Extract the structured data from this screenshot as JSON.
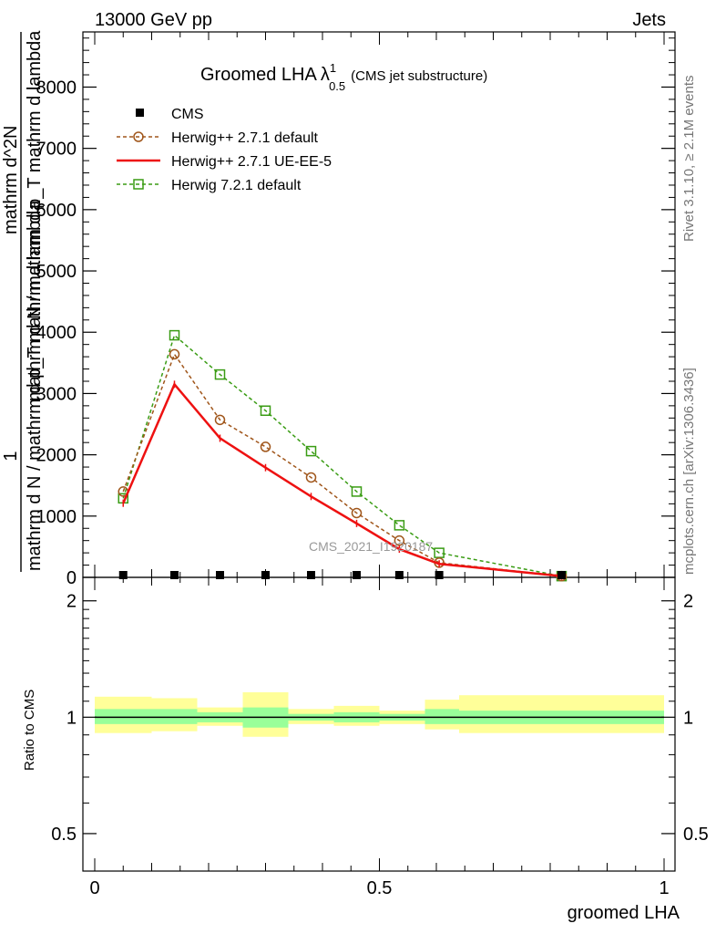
{
  "header": {
    "left": "13000 GeV pp",
    "right": "Jets"
  },
  "side": {
    "rivet": "Rivet 3.1.10, ≥ 2.1M events",
    "mcplots": "mcplots.cern.ch [arXiv:1306.3436]"
  },
  "plot": {
    "title_main": "Groomed LHA",
    "title_lambda": "λ",
    "title_sup": "1",
    "title_sub": "0.5",
    "title_note": "(CMS jet substructure)",
    "watermark": "CMS_2021_I1920187",
    "ylabel_num": "1",
    "ylabel_den": "mathrm d N / mathrm d p_T mathrm d lambda",
    "ylabel_num2": "mathrm d^2N",
    "ylabel_den2": "mathrm d N / mathrm d p_T mathrm d lambda",
    "ratio_ylabel": "Ratio to CMS",
    "xlabel": "groomed LHA"
  },
  "legend": [
    {
      "label": "CMS",
      "color": "#000000",
      "style": "square-filled"
    },
    {
      "label": "Herwig++ 2.7.1 default",
      "color": "#a0561b",
      "style": "circle-dashed"
    },
    {
      "label": "Herwig++ 2.7.1 UE-EE-5",
      "color": "#ee1111",
      "style": "solid"
    },
    {
      "label": "Herwig 7.2.1 default",
      "color": "#3a9c14",
      "style": "square-dashed"
    }
  ],
  "chart_data": {
    "type": "line",
    "xlim": [
      0,
      1
    ],
    "ylim": [
      0,
      8900
    ],
    "ratio_ylim_log": [
      0.4,
      2.3
    ],
    "x_ticks": [
      "0",
      "0.5",
      "1"
    ],
    "y_ticks": [
      "0",
      "1000",
      "2000",
      "3000",
      "4000",
      "5000",
      "6000",
      "7000",
      "8000"
    ],
    "ratio_y_ticks": [
      "0.5",
      "1",
      "2"
    ],
    "bin_edges": [
      0.0,
      0.1,
      0.18,
      0.26,
      0.34,
      0.42,
      0.5,
      0.58,
      0.64,
      1.0
    ],
    "x": [
      0.05,
      0.14,
      0.22,
      0.3,
      0.38,
      0.46,
      0.535,
      0.605,
      0.82
    ],
    "series": [
      {
        "name": "CMS",
        "values": [
          0,
          0,
          0,
          0,
          0,
          0,
          0,
          0,
          0
        ]
      },
      {
        "name": "Herwig++ 2.7.1 default",
        "values": [
          1400,
          3640,
          2570,
          2130,
          1630,
          1050,
          600,
          240,
          20
        ]
      },
      {
        "name": "Herwig++ 2.7.1 UE-EE-5",
        "values": [
          1210,
          3150,
          2270,
          1790,
          1320,
          880,
          460,
          220,
          20
        ]
      },
      {
        "name": "Herwig 7.2.1 default",
        "values": [
          1290,
          3950,
          3310,
          2720,
          2060,
          1400,
          850,
          400,
          20
        ]
      }
    ],
    "ratio_band_outer": [
      [
        0.91,
        1.13
      ],
      [
        0.92,
        1.12
      ],
      [
        0.95,
        1.06
      ],
      [
        0.89,
        1.16
      ],
      [
        0.96,
        1.05
      ],
      [
        0.95,
        1.07
      ],
      [
        0.96,
        1.04
      ],
      [
        0.93,
        1.11
      ],
      [
        0.91,
        1.14
      ]
    ],
    "ratio_band_inner": [
      [
        0.96,
        1.05
      ],
      [
        0.96,
        1.05
      ],
      [
        0.97,
        1.03
      ],
      [
        0.94,
        1.06
      ],
      [
        0.98,
        1.02
      ],
      [
        0.97,
        1.03
      ],
      [
        0.98,
        1.02
      ],
      [
        0.96,
        1.05
      ],
      [
        0.96,
        1.04
      ]
    ],
    "band_colors": {
      "outer": "#ffff99",
      "inner": "#99ff99"
    }
  }
}
